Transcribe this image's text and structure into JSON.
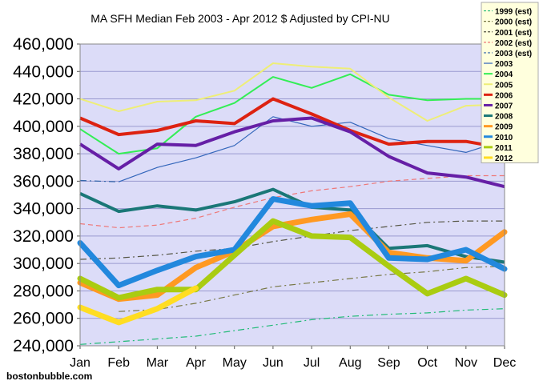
{
  "chart_data": {
    "type": "line",
    "title": "MA SFH Median Feb 2003 - Apr 2012 $ Adjusted by CPI-NU",
    "xlabel": "",
    "ylabel": "",
    "categories": [
      "Jan",
      "Feb",
      "Mar",
      "Apr",
      "May",
      "Jun",
      "Jul",
      "Aug",
      "Sep",
      "Oct",
      "Nov",
      "Dec"
    ],
    "y_ticks": [
      "240,000",
      "260,000",
      "280,000",
      "300,000",
      "320,000",
      "340,000",
      "360,000",
      "380,000",
      "400,000",
      "420,000",
      "440,000",
      "460,000"
    ],
    "ylim": [
      240000,
      460000
    ],
    "grid": "horizontal",
    "plot_background": "#dcdcf8",
    "legend_position": "top-right",
    "series": [
      {
        "name": "1999 (est)",
        "color": "#22bb77",
        "style": "dashdot",
        "width": "thin",
        "values": [
          241000,
          243000,
          245000,
          247000,
          251000,
          255000,
          259000,
          261500,
          263000,
          264000,
          266000,
          267000
        ]
      },
      {
        "name": "2000 (est)",
        "color": "#777744",
        "style": "dashdot",
        "width": "thin",
        "values": [
          null,
          265000,
          266500,
          271000,
          277000,
          283000,
          286000,
          289000,
          292000,
          294000,
          297000,
          298000
        ]
      },
      {
        "name": "2001 (est)",
        "color": "#555544",
        "style": "dashdot",
        "width": "thin",
        "values": [
          303000,
          304000,
          306000,
          309000,
          311000,
          316000,
          320000,
          324000,
          327000,
          330000,
          331000,
          331000
        ]
      },
      {
        "name": "2002 (est)",
        "color": "#ee7777",
        "style": "dashed",
        "width": "thin",
        "values": [
          329000,
          326000,
          328000,
          333000,
          341000,
          348000,
          353000,
          356000,
          360000,
          362000,
          364000,
          364000
        ]
      },
      {
        "name": "2003 (est)",
        "color": "#3366aa",
        "style": "dashdot",
        "width": "thin",
        "values": [
          360500,
          359500,
          null,
          null,
          null,
          null,
          null,
          null,
          null,
          null,
          null,
          null
        ]
      },
      {
        "name": "2003",
        "color": "#3366bb",
        "style": "solid",
        "width": "thin",
        "values": [
          null,
          359500,
          370000,
          377000,
          386000,
          407000,
          400000,
          403000,
          391000,
          386000,
          381000,
          390000
        ]
      },
      {
        "name": "2004",
        "color": "#33ee55",
        "style": "solid",
        "width": "medium",
        "values": [
          398000,
          380000,
          384000,
          407000,
          417000,
          436000,
          428000,
          438000,
          423000,
          419000,
          420000,
          420000
        ]
      },
      {
        "name": "2005",
        "color": "#eeee77",
        "style": "solid",
        "width": "medium",
        "values": [
          420000,
          411000,
          418000,
          419000,
          426000,
          446000,
          443500,
          442000,
          421000,
          404000,
          415000,
          416000
        ]
      },
      {
        "name": "2006",
        "color": "#dd2211",
        "style": "solid",
        "width": "thick",
        "values": [
          406000,
          394000,
          397000,
          404000,
          402000,
          420000,
          409000,
          397000,
          387000,
          389000,
          389000,
          384000
        ]
      },
      {
        "name": "2007",
        "color": "#661fa6",
        "style": "solid",
        "width": "thick",
        "values": [
          387000,
          369000,
          387000,
          386000,
          396000,
          404000,
          406000,
          396000,
          378000,
          366000,
          363000,
          356000
        ]
      },
      {
        "name": "2008",
        "color": "#1a7777",
        "style": "solid",
        "width": "thick",
        "values": [
          351000,
          338000,
          342000,
          339000,
          345000,
          354000,
          341000,
          339000,
          311000,
          313000,
          305000,
          301000
        ]
      },
      {
        "name": "2009",
        "color": "#ff9922",
        "style": "solid",
        "width": "xthick",
        "values": [
          286000,
          274000,
          277000,
          297000,
          309000,
          327000,
          332000,
          336000,
          308000,
          304000,
          302000,
          323000
        ]
      },
      {
        "name": "2010",
        "color": "#2288dd",
        "style": "solid",
        "width": "xthick",
        "values": [
          315000,
          284000,
          295000,
          305000,
          310000,
          347000,
          342000,
          344000,
          304000,
          303000,
          310000,
          296000
        ]
      },
      {
        "name": "2011",
        "color": "#aacc11",
        "style": "solid",
        "width": "xthick",
        "values": [
          289000,
          275000,
          281000,
          281000,
          306000,
          331000,
          320000,
          319000,
          298000,
          278000,
          289000,
          277000
        ]
      },
      {
        "name": "2012",
        "color": "#ffdd22",
        "style": "solid",
        "width": "xthick",
        "values": [
          268000,
          257000,
          267000,
          282000,
          null,
          null,
          null,
          null,
          null,
          null,
          null,
          null
        ]
      }
    ]
  },
  "footer": {
    "site": "bostonbubble.com"
  }
}
